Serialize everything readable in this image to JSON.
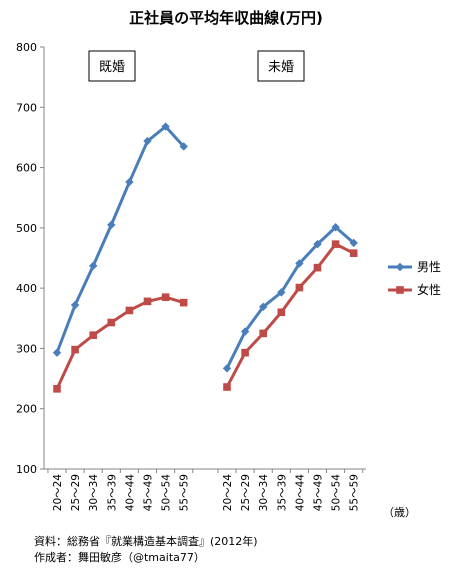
{
  "chart_data": {
    "type": "line",
    "title": "正社員の平均年収曲線(万円)",
    "categories": [
      "20～24",
      "25～29",
      "30～34",
      "35～39",
      "40～44",
      "45～49",
      "50～54",
      "55～59"
    ],
    "x_unit_label": "（歳）",
    "ylim": [
      100,
      800
    ],
    "yticks": [
      100,
      200,
      300,
      400,
      500,
      600,
      700,
      800
    ],
    "grid": false,
    "legend_position": "right",
    "groups": [
      {
        "label": "既婚",
        "series": [
          {
            "name": "男性",
            "values": [
              293,
              372,
              437,
              505,
              576,
              644,
              668,
              635
            ]
          },
          {
            "name": "女性",
            "values": [
              233,
              298,
              322,
              343,
              363,
              378,
              385,
              376
            ]
          }
        ]
      },
      {
        "label": "未婚",
        "series": [
          {
            "name": "男性",
            "values": [
              267,
              328,
              369,
              393,
              441,
              473,
              501,
              475
            ]
          },
          {
            "name": "女性",
            "values": [
              236,
              293,
              325,
              360,
              401,
              434,
              473,
              458
            ]
          }
        ]
      }
    ],
    "legend": [
      {
        "name": "男性",
        "color": "#4A7EBB",
        "marker": "diamond"
      },
      {
        "name": "女性",
        "color": "#BE4B48",
        "marker": "square"
      }
    ]
  },
  "source": {
    "line1": "資料：総務省『就業構造基本調査』(2012年)",
    "line2": "作成者：舞田敏彦（@tmaita77）"
  }
}
